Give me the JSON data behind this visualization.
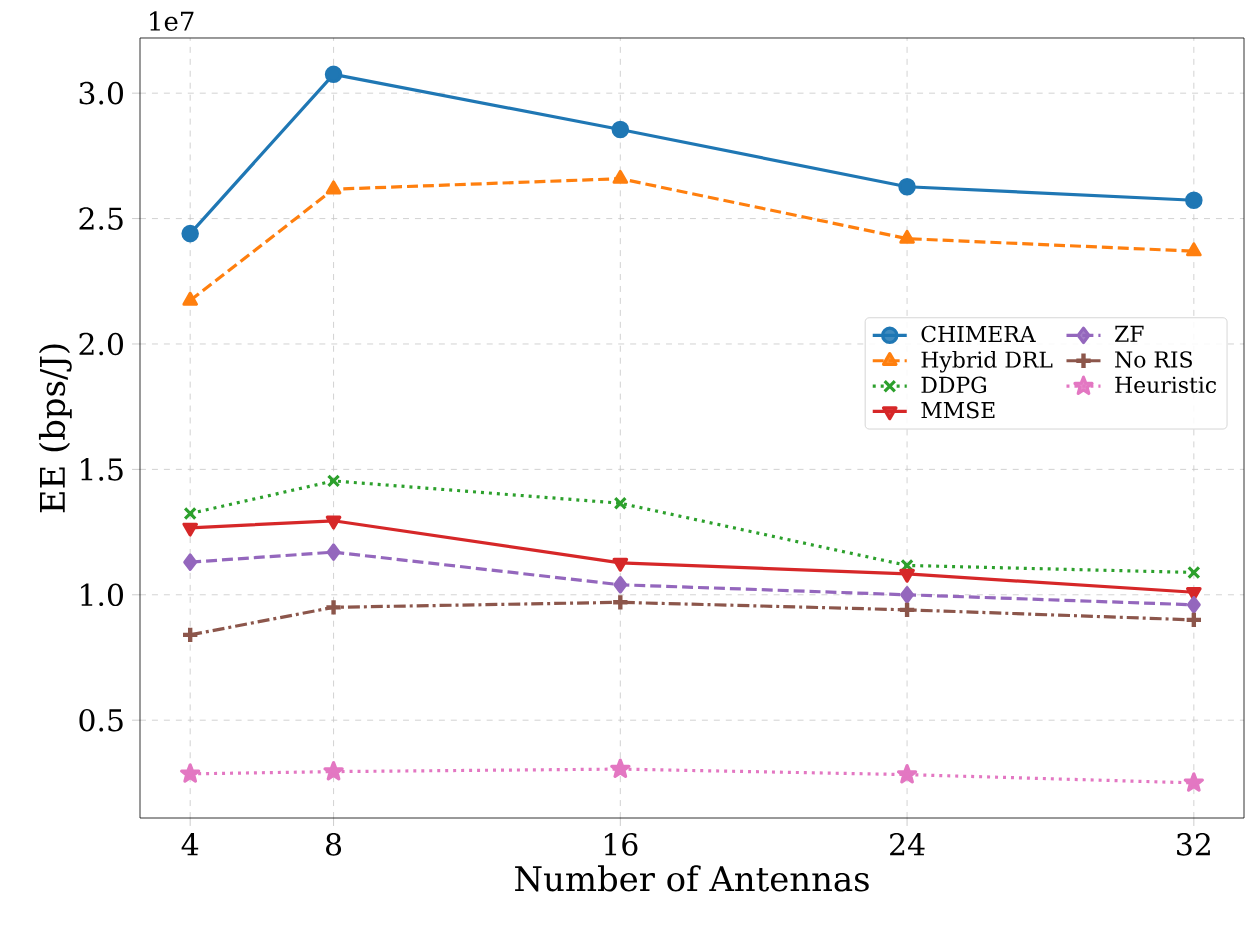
{
  "chart_data": {
    "type": "line",
    "xlabel": "Number of Antennas",
    "ylabel": "EE (bps/J)",
    "annotations": [
      "1e7"
    ],
    "x": [
      4,
      8,
      16,
      24,
      32
    ],
    "xlim": [
      2.6,
      33.4
    ],
    "ylim": [
      0.11,
      3.22
    ],
    "xticks": [
      4,
      8,
      16,
      24,
      32
    ],
    "yticks": [
      {
        "value": 0.5,
        "label": "0.5"
      },
      {
        "value": 1.0,
        "label": "1.0"
      },
      {
        "value": 1.5,
        "label": "1.5"
      },
      {
        "value": 2.0,
        "label": "2.0"
      },
      {
        "value": 2.5,
        "label": "2.5"
      },
      {
        "value": 3.0,
        "label": "3.0"
      }
    ],
    "grid": true,
    "legend": "center right",
    "series": [
      {
        "name": "CHIMERA",
        "color": "#1f77b4",
        "marker": "circle",
        "line_style": "solid",
        "values": [
          2.44,
          3.075,
          2.855,
          2.627,
          2.573
        ]
      },
      {
        "name": "Hybrid DRL",
        "color": "#ff7f0e",
        "marker": "triangle",
        "line_style": "dashed",
        "values": [
          2.173,
          2.617,
          2.659,
          2.42,
          2.37
        ]
      },
      {
        "name": "DDPG",
        "color": "#2ca02c",
        "marker": "cross",
        "line_style": "dotted",
        "values": [
          1.324,
          1.454,
          1.365,
          1.117,
          1.089
        ]
      },
      {
        "name": "MMSE",
        "color": "#d62728",
        "marker": "triangle_down",
        "line_style": "solid",
        "values": [
          1.267,
          1.295,
          1.127,
          1.083,
          1.01
        ]
      },
      {
        "name": "ZF",
        "color": "#9467bd",
        "marker": "diamond",
        "line_style": "dashed",
        "values": [
          1.13,
          1.17,
          1.04,
          1.0,
          0.96
        ]
      },
      {
        "name": "No RIS",
        "color": "#8c564b",
        "marker": "plus",
        "line_style": "dashdot",
        "values": [
          0.84,
          0.95,
          0.97,
          0.94,
          0.9
        ]
      },
      {
        "name": "Heuristic",
        "color": "#e377c2",
        "marker": "star",
        "line_style": "dotted",
        "values": [
          0.286,
          0.295,
          0.305,
          0.283,
          0.25
        ]
      }
    ]
  }
}
